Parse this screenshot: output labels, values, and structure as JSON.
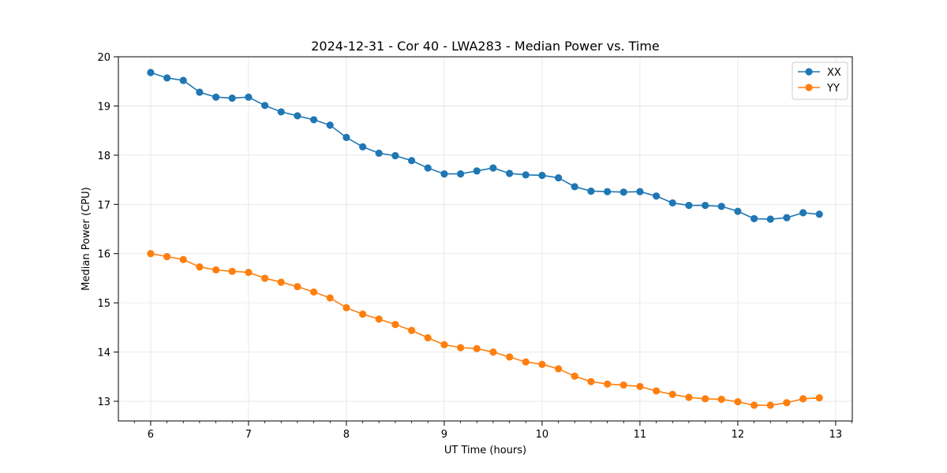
{
  "chart_data": {
    "type": "line",
    "title": "2024-12-31 - Cor 40 - LWA283 - Median Power vs. Time",
    "xlabel": "UT Time (hours)",
    "ylabel": "Median Power (CPU)",
    "xlim": [
      5.67,
      13.17
    ],
    "ylim": [
      12.6,
      20.0
    ],
    "xticks": [
      6,
      7,
      8,
      9,
      10,
      11,
      12,
      13
    ],
    "yticks": [
      13,
      14,
      15,
      16,
      17,
      18,
      19,
      20
    ],
    "grid": true,
    "legend_position": "top-right",
    "x": [
      6.0,
      6.167,
      6.333,
      6.5,
      6.667,
      6.833,
      7.0,
      7.167,
      7.333,
      7.5,
      7.667,
      7.833,
      8.0,
      8.167,
      8.333,
      8.5,
      8.667,
      8.833,
      9.0,
      9.167,
      9.333,
      9.5,
      9.667,
      9.833,
      10.0,
      10.167,
      10.333,
      10.5,
      10.667,
      10.833,
      11.0,
      11.167,
      11.333,
      11.5,
      11.667,
      11.833,
      12.0,
      12.167,
      12.333,
      12.5,
      12.667,
      12.833
    ],
    "series": [
      {
        "name": "XX",
        "color": "#1f77b4",
        "values": [
          19.68,
          19.57,
          19.52,
          19.28,
          19.18,
          19.16,
          19.18,
          19.01,
          18.88,
          18.8,
          18.72,
          18.61,
          18.36,
          18.17,
          18.04,
          17.99,
          17.89,
          17.74,
          17.62,
          17.62,
          17.68,
          17.74,
          17.63,
          17.6,
          17.59,
          17.54,
          17.36,
          17.27,
          17.26,
          17.25,
          17.26,
          17.17,
          17.03,
          16.98,
          16.98,
          16.96,
          16.86,
          16.71,
          16.7,
          16.73,
          16.83,
          16.8
        ]
      },
      {
        "name": "YY",
        "color": "#ff7f0e",
        "values": [
          16.0,
          15.94,
          15.88,
          15.73,
          15.67,
          15.64,
          15.62,
          15.5,
          15.42,
          15.33,
          15.22,
          15.1,
          14.9,
          14.77,
          14.67,
          14.56,
          14.44,
          14.29,
          14.15,
          14.09,
          14.07,
          14.0,
          13.9,
          13.8,
          13.75,
          13.66,
          13.51,
          13.4,
          13.35,
          13.33,
          13.3,
          13.21,
          13.14,
          13.08,
          13.05,
          13.04,
          12.99,
          12.92,
          12.92,
          12.97,
          13.05,
          13.07
        ]
      }
    ]
  }
}
